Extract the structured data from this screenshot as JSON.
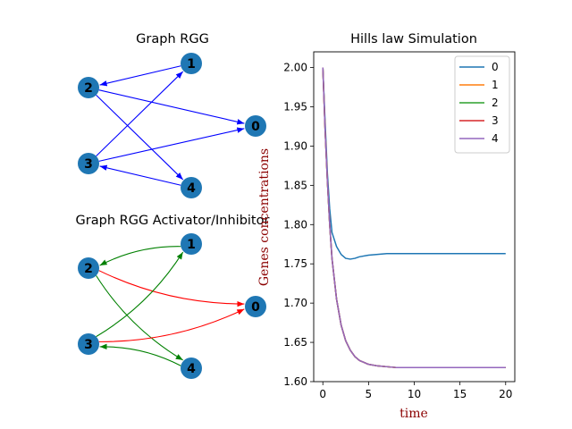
{
  "figure": {
    "graph_top": {
      "title": "Graph RGG",
      "edge_color": "#0000ff",
      "nodes": [
        "0",
        "1",
        "2",
        "3",
        "4"
      ],
      "edges": [
        {
          "from": "1",
          "to": "2"
        },
        {
          "from": "2",
          "to": "0"
        },
        {
          "from": "2",
          "to": "4"
        },
        {
          "from": "3",
          "to": "1"
        },
        {
          "from": "3",
          "to": "0"
        },
        {
          "from": "4",
          "to": "3"
        }
      ]
    },
    "graph_bottom": {
      "title": "Graph RGG Activator/Inhibitor",
      "nodes": [
        "0",
        "1",
        "2",
        "3",
        "4"
      ],
      "activator_color": "#008000",
      "inhibitor_color": "#ff0000",
      "edges": [
        {
          "from": "1",
          "to": "2",
          "kind": "activator"
        },
        {
          "from": "2",
          "to": "0",
          "kind": "inhibitor"
        },
        {
          "from": "2",
          "to": "4",
          "kind": "activator"
        },
        {
          "from": "3",
          "to": "1",
          "kind": "activator"
        },
        {
          "from": "3",
          "to": "0",
          "kind": "inhibitor"
        },
        {
          "from": "4",
          "to": "3",
          "kind": "activator"
        }
      ]
    },
    "node_color": "#1f77b4"
  },
  "chart_data": {
    "type": "line",
    "title": "Hills law Simulation",
    "xlabel": "time",
    "ylabel": "Genes concentrations",
    "xlim": [
      -1,
      21
    ],
    "ylim": [
      1.6,
      2.02
    ],
    "xticks": [
      "0",
      "5",
      "10",
      "15",
      "20"
    ],
    "yticks": [
      "1.60",
      "1.65",
      "1.70",
      "1.75",
      "1.80",
      "1.85",
      "1.90",
      "1.95",
      "2.00"
    ],
    "legend_position": "top-right",
    "x": [
      0,
      0.25,
      0.5,
      0.75,
      1,
      1.5,
      2,
      2.5,
      3,
      3.5,
      4,
      5,
      6,
      7,
      8,
      10,
      12,
      15,
      20
    ],
    "series": [
      {
        "name": "0",
        "color": "#1f77b4",
        "values": [
          2.0,
          1.93,
          1.865,
          1.82,
          1.79,
          1.772,
          1.762,
          1.757,
          1.756,
          1.757,
          1.759,
          1.761,
          1.762,
          1.763,
          1.763,
          1.763,
          1.763,
          1.763,
          1.763
        ]
      },
      {
        "name": "1",
        "color": "#ff7f0e",
        "values": [
          2.0,
          1.92,
          1.855,
          1.8,
          1.757,
          1.705,
          1.672,
          1.652,
          1.64,
          1.632,
          1.627,
          1.622,
          1.62,
          1.619,
          1.618,
          1.618,
          1.618,
          1.618,
          1.618
        ]
      },
      {
        "name": "2",
        "color": "#2ca02c",
        "values": [
          2.0,
          1.92,
          1.855,
          1.8,
          1.757,
          1.705,
          1.672,
          1.652,
          1.64,
          1.632,
          1.627,
          1.622,
          1.62,
          1.619,
          1.618,
          1.618,
          1.618,
          1.618,
          1.618
        ]
      },
      {
        "name": "3",
        "color": "#d62728",
        "values": [
          2.0,
          1.92,
          1.855,
          1.8,
          1.757,
          1.705,
          1.672,
          1.652,
          1.64,
          1.632,
          1.627,
          1.622,
          1.62,
          1.619,
          1.618,
          1.618,
          1.618,
          1.618,
          1.618
        ]
      },
      {
        "name": "4",
        "color": "#9467bd",
        "values": [
          2.0,
          1.92,
          1.855,
          1.8,
          1.757,
          1.705,
          1.672,
          1.652,
          1.64,
          1.632,
          1.627,
          1.622,
          1.62,
          1.619,
          1.618,
          1.618,
          1.618,
          1.618,
          1.618
        ]
      }
    ]
  }
}
